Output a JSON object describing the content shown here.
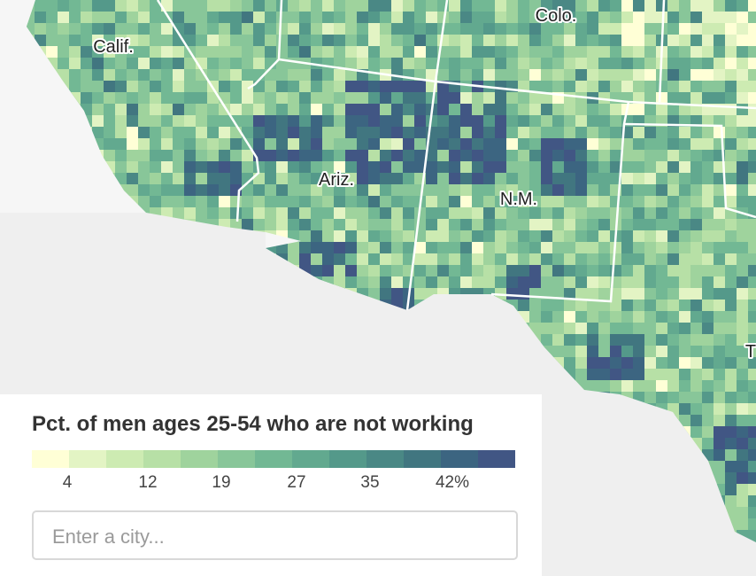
{
  "map": {
    "place_labels": [
      "Calif.",
      "Colo.",
      "Ariz.",
      "N.M.",
      "T"
    ],
    "legend": {
      "title": "Pct. of men ages 25-54 who are not working",
      "colors": [
        "#ffffd6",
        "#e3f4c4",
        "#cdebb2",
        "#b7e0a6",
        "#9fd39d",
        "#88c699",
        "#72b894",
        "#62a98f",
        "#54998a",
        "#4a8885",
        "#417680",
        "#3c6581",
        "#415684"
      ],
      "labels": [
        "4",
        "12",
        "19",
        "27",
        "35",
        "42%"
      ]
    },
    "search": {
      "placeholder": "Enter a city..."
    }
  }
}
